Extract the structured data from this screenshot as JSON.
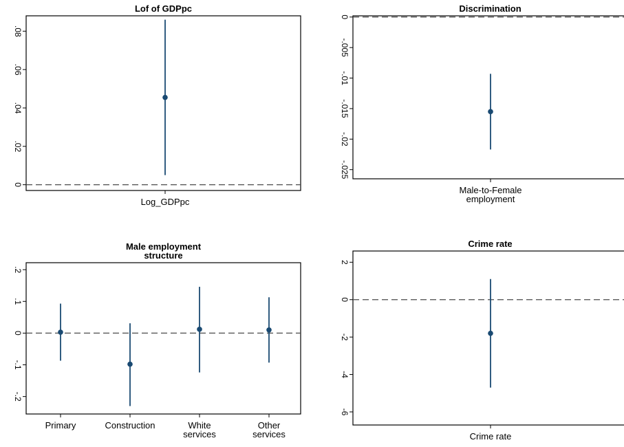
{
  "chart_data": [
    {
      "type": "scatter",
      "subtype": "coefficient plot with confidence intervals",
      "title": [
        "Lof of GDPpc"
      ],
      "categories": [
        [
          "Log_GDPpc"
        ]
      ],
      "estimates": [
        0.0455
      ],
      "ci_low": [
        0.005
      ],
      "ci_high": [
        0.086
      ],
      "ylim": [
        -0.003,
        0.088
      ],
      "yticks": [
        0,
        0.02,
        0.04,
        0.06,
        0.08
      ],
      "ytick_labels": [
        "0",
        ".02",
        ".04",
        ".06",
        ".08"
      ],
      "reference_line": 0,
      "grid": false
    },
    {
      "type": "scatter",
      "subtype": "coefficient plot with confidence intervals",
      "title": [
        "Discrimination"
      ],
      "categories": [
        [
          "Male-to-Female",
          "employment"
        ]
      ],
      "estimates": [
        -0.0155
      ],
      "ci_low": [
        -0.0217
      ],
      "ci_high": [
        -0.0093
      ],
      "ylim": [
        -0.0265,
        0.0002
      ],
      "yticks": [
        0,
        -0.005,
        -0.01,
        -0.015,
        -0.02,
        -0.025
      ],
      "ytick_labels": [
        "0",
        "-.005",
        "-.01",
        "-.015",
        "-.02",
        "-.025"
      ],
      "reference_line": 0,
      "grid": false
    },
    {
      "type": "scatter",
      "subtype": "coefficient plot with confidence intervals",
      "title": [
        "Male employment",
        "structure"
      ],
      "categories": [
        [
          "Primary"
        ],
        [
          "Construction"
        ],
        [
          "White",
          "services"
        ],
        [
          "Other",
          "services"
        ]
      ],
      "estimates": [
        0.003,
        -0.098,
        0.012,
        0.01
      ],
      "ci_low": [
        -0.087,
        -0.23,
        -0.124,
        -0.093
      ],
      "ci_high": [
        0.093,
        0.031,
        0.146,
        0.113
      ],
      "ylim": [
        -0.255,
        0.222
      ],
      "yticks": [
        0.2,
        0.1,
        0,
        -0.1,
        -0.2
      ],
      "ytick_labels": [
        ".2",
        ".1",
        "0",
        "-.1",
        "-.2"
      ],
      "reference_line": 0,
      "grid": false
    },
    {
      "type": "scatter",
      "subtype": "coefficient plot with confidence intervals",
      "title": [
        "Crime rate"
      ],
      "categories": [
        [
          "Crime rate"
        ]
      ],
      "estimates": [
        -1.8
      ],
      "ci_low": [
        -4.7
      ],
      "ci_high": [
        1.1
      ],
      "ylim": [
        -6.7,
        2.6
      ],
      "yticks": [
        2,
        0,
        -2,
        -4,
        -6
      ],
      "ytick_labels": [
        "2",
        "0",
        "-2",
        "-4",
        "-6"
      ],
      "reference_line": 0,
      "grid": false
    }
  ],
  "colors": {
    "marker": "#1a4a72",
    "reference_line": "#4a4a4a",
    "axis": "#000000"
  }
}
